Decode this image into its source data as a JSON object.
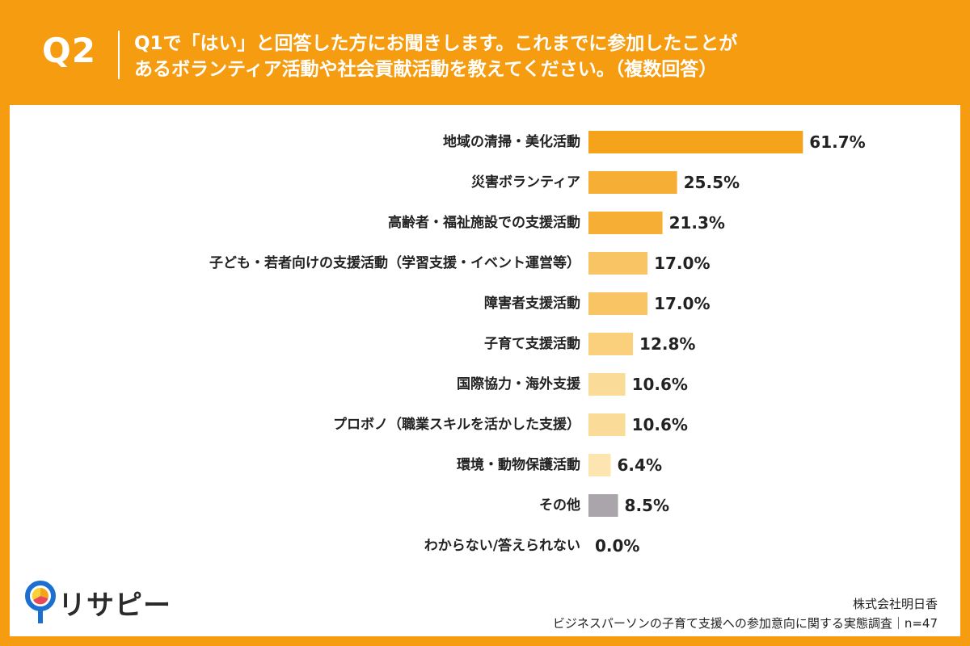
{
  "header": {
    "q_number": "Q2",
    "question_line1": "Q1で「はい」と回答した方にお聞きします。これまでに参加したことが",
    "question_line2": "あるボランティア活動や社会貢献活動を教えてください。（複数回答）"
  },
  "chart_data": {
    "type": "bar",
    "orientation": "horizontal",
    "categories": [
      "地域の清掃・美化活動",
      "災害ボランティア",
      "高齢者・福祉施設での支援活動",
      "子ども・若者向けの支援活動（学習支援・イベント運営等）",
      "障害者支援活動",
      "子育て支援活動",
      "国際協力・海外支援",
      "プロボノ（職業スキルを活かした支援）",
      "環境・動物保護活動",
      "その他",
      "わからない/答えられない"
    ],
    "values": [
      61.7,
      25.5,
      21.3,
      17.0,
      17.0,
      12.8,
      10.6,
      10.6,
      6.4,
      8.5,
      0.0
    ],
    "value_labels": [
      "61.7%",
      "25.5%",
      "21.3%",
      "17.0%",
      "17.0%",
      "12.8%",
      "10.6%",
      "10.6%",
      "6.4%",
      "8.5%",
      "0.0%"
    ],
    "colors": [
      "#f5a31a",
      "#f7ae35",
      "#f7ae35",
      "#f9c464",
      "#f9c464",
      "#fad07d",
      "#fbdb98",
      "#fbdb98",
      "#fce5b0",
      "#a9a5ab",
      "#ffffff"
    ],
    "xlim": [
      0,
      100
    ]
  },
  "logo": {
    "text": "リサピー"
  },
  "footer": {
    "company": "株式会社明日香",
    "survey": "ビジネスパーソンの子育て支援への参加意向に関する実態調査｜n=47"
  }
}
